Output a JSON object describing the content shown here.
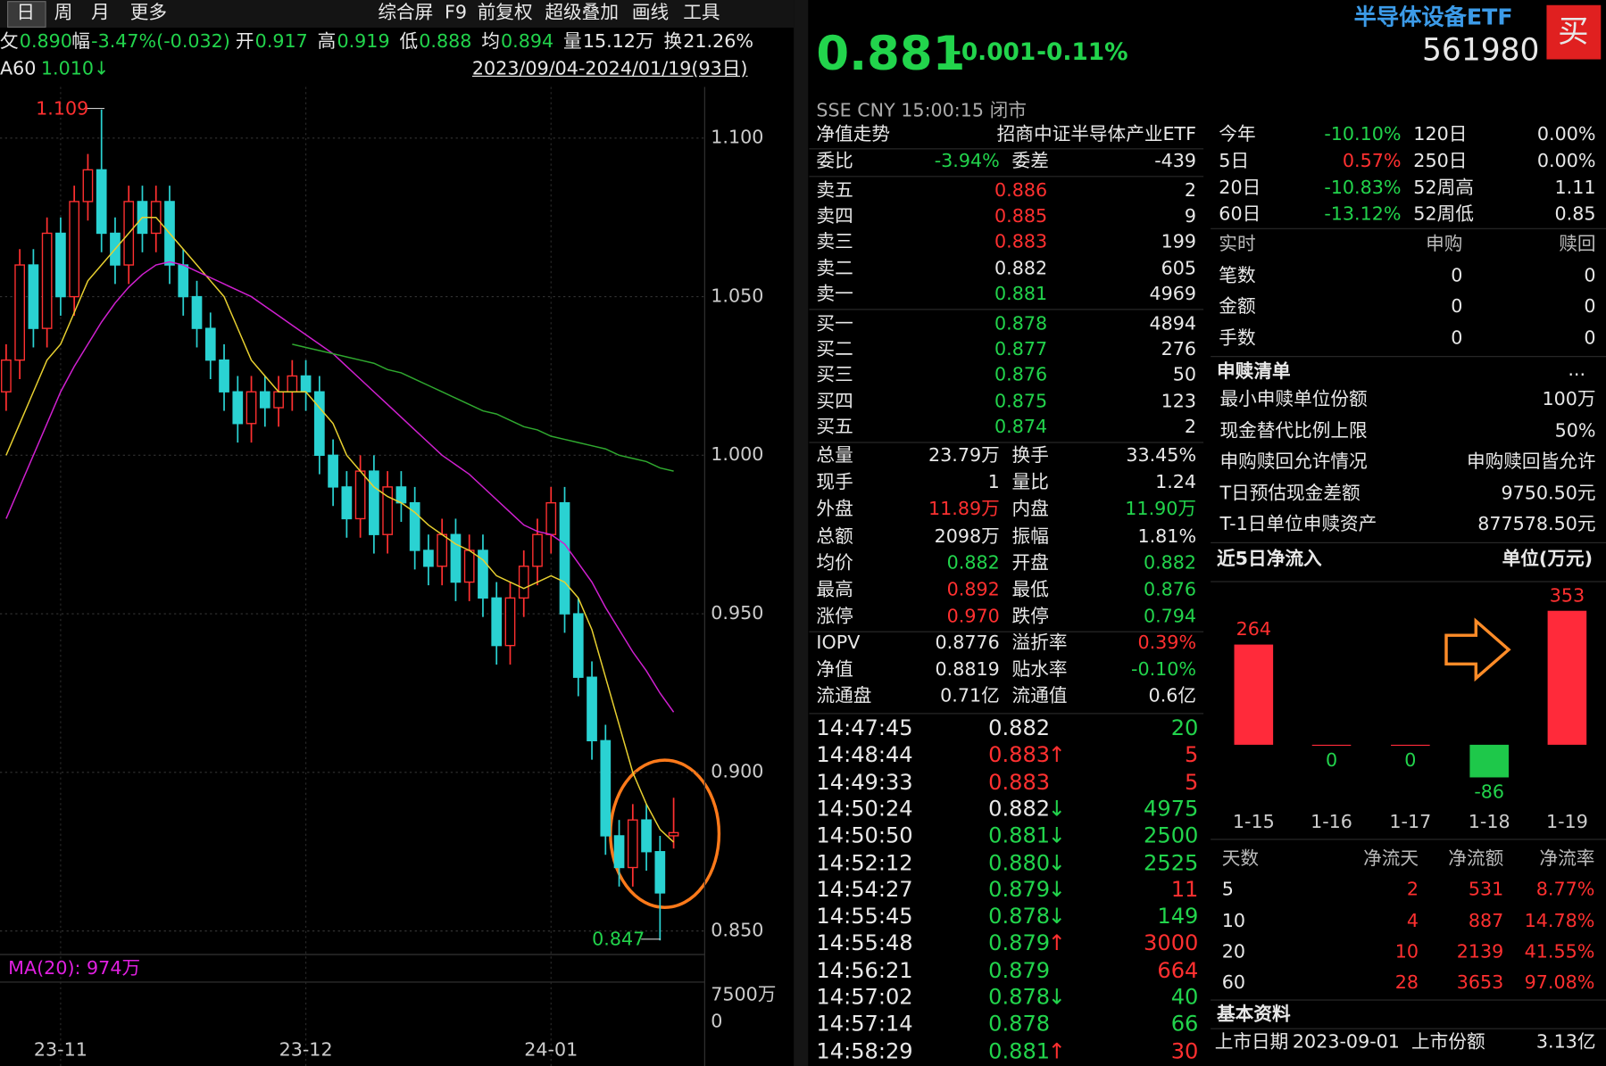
{
  "toolbar": {
    "tabs": [
      "日",
      "周",
      "月",
      "更多"
    ],
    "tools": [
      "综合屏",
      "F9",
      "前复权",
      "超级叠加",
      "画线",
      "工具"
    ]
  },
  "quote_line": {
    "items": [
      [
        "攵",
        "0.890"
      ],
      [
        "幅",
        "-3.47%(-0.032)"
      ],
      [
        "开",
        "0.917"
      ],
      [
        "高",
        "0.919"
      ],
      [
        "低",
        "0.888"
      ],
      [
        "均",
        "0.894"
      ],
      [
        "量",
        "15.12万"
      ],
      [
        "换",
        "21.26%"
      ]
    ],
    "colors": [
      "g",
      "g",
      "g",
      "g",
      "g",
      "g",
      "w",
      "w"
    ]
  },
  "ma_label": {
    "name": "A60",
    "value": "1.010↓"
  },
  "range": "2023/09/04-2024/01/19(93日)",
  "chart_data": {
    "type": "candlestick",
    "candles": [
      [
        1.02,
        1.035,
        1.014,
        1.03
      ],
      [
        1.03,
        1.065,
        1.024,
        1.06
      ],
      [
        1.06,
        1.065,
        1.034,
        1.04
      ],
      [
        1.04,
        1.075,
        1.034,
        1.07
      ],
      [
        1.07,
        1.075,
        1.044,
        1.05
      ],
      [
        1.05,
        1.085,
        1.044,
        1.08
      ],
      [
        1.08,
        1.095,
        1.074,
        1.09
      ],
      [
        1.09,
        1.109,
        1.064,
        1.07
      ],
      [
        1.07,
        1.075,
        1.054,
        1.06
      ],
      [
        1.06,
        1.085,
        1.054,
        1.08
      ],
      [
        1.08,
        1.085,
        1.064,
        1.07
      ],
      [
        1.07,
        1.085,
        1.064,
        1.08
      ],
      [
        1.08,
        1.085,
        1.054,
        1.06
      ],
      [
        1.06,
        1.065,
        1.044,
        1.05
      ],
      [
        1.05,
        1.055,
        1.034,
        1.04
      ],
      [
        1.04,
        1.045,
        1.024,
        1.03
      ],
      [
        1.03,
        1.035,
        1.014,
        1.02
      ],
      [
        1.02,
        1.025,
        1.004,
        1.01
      ],
      [
        1.01,
        1.025,
        1.004,
        1.02
      ],
      [
        1.02,
        1.025,
        1.009,
        1.015
      ],
      [
        1.015,
        1.025,
        1.009,
        1.02
      ],
      [
        1.02,
        1.03,
        1.014,
        1.025
      ],
      [
        1.025,
        1.03,
        1.014,
        1.02
      ],
      [
        1.02,
        1.025,
        0.994,
        1.0
      ],
      [
        1.0,
        1.005,
        0.984,
        0.99
      ],
      [
        0.99,
        0.995,
        0.974,
        0.98
      ],
      [
        0.98,
        1.0,
        0.974,
        0.995
      ],
      [
        0.995,
        1.0,
        0.969,
        0.975
      ],
      [
        0.975,
        0.995,
        0.969,
        0.99
      ],
      [
        0.99,
        0.995,
        0.979,
        0.985
      ],
      [
        0.985,
        0.99,
        0.964,
        0.97
      ],
      [
        0.97,
        0.975,
        0.959,
        0.965
      ],
      [
        0.965,
        0.98,
        0.959,
        0.975
      ],
      [
        0.975,
        0.98,
        0.954,
        0.96
      ],
      [
        0.96,
        0.975,
        0.954,
        0.97
      ],
      [
        0.97,
        0.975,
        0.949,
        0.955
      ],
      [
        0.955,
        0.96,
        0.934,
        0.94
      ],
      [
        0.94,
        0.96,
        0.934,
        0.955
      ],
      [
        0.955,
        0.97,
        0.949,
        0.965
      ],
      [
        0.965,
        0.98,
        0.959,
        0.975
      ],
      [
        0.975,
        0.99,
        0.969,
        0.985
      ],
      [
        0.985,
        0.99,
        0.944,
        0.95
      ],
      [
        0.95,
        0.955,
        0.924,
        0.93
      ],
      [
        0.93,
        0.935,
        0.904,
        0.91
      ],
      [
        0.91,
        0.915,
        0.874,
        0.88
      ],
      [
        0.88,
        0.885,
        0.864,
        0.87
      ],
      [
        0.87,
        0.89,
        0.864,
        0.885
      ],
      [
        0.885,
        0.89,
        0.869,
        0.875
      ],
      [
        0.875,
        0.88,
        0.847,
        0.862
      ],
      [
        0.88,
        0.892,
        0.876,
        0.881
      ]
    ],
    "categories": [
      null,
      null,
      null,
      null,
      "23-11",
      null,
      null,
      null,
      null,
      null,
      null,
      null,
      null,
      null,
      null,
      null,
      null,
      null,
      null,
      null,
      null,
      null,
      "23-12",
      null,
      null,
      null,
      null,
      null,
      null,
      null,
      null,
      null,
      null,
      null,
      null,
      null,
      null,
      null,
      null,
      null,
      "24-01",
      null,
      null,
      null,
      null,
      null,
      null,
      null,
      null,
      null
    ],
    "ma": [
      {
        "color": "#e8d030",
        "values": [
          1.0,
          1.01,
          1.02,
          1.03,
          1.035,
          1.045,
          1.055,
          1.06,
          1.065,
          1.07,
          1.075,
          1.075,
          1.07,
          1.065,
          1.06,
          1.055,
          1.05,
          1.04,
          1.03,
          1.025,
          1.02,
          1.02,
          1.02,
          1.015,
          1.01,
          1.0,
          0.995,
          0.99,
          0.987,
          0.985,
          0.982,
          0.978,
          0.975,
          0.972,
          0.97,
          0.967,
          0.962,
          0.96,
          0.958,
          0.96,
          0.962,
          0.96,
          0.955,
          0.945,
          0.93,
          0.915,
          0.9,
          0.89,
          0.882,
          0.878
        ]
      },
      {
        "color": "#d020d0",
        "values": [
          0.98,
          0.99,
          1.0,
          1.01,
          1.02,
          1.028,
          1.035,
          1.042,
          1.048,
          1.053,
          1.057,
          1.06,
          1.061,
          1.06,
          1.058,
          1.056,
          1.054,
          1.052,
          1.05,
          1.047,
          1.044,
          1.041,
          1.038,
          1.035,
          1.032,
          1.028,
          1.024,
          1.02,
          1.016,
          1.012,
          1.008,
          1.004,
          1.0,
          0.997,
          0.994,
          0.99,
          0.986,
          0.982,
          0.978,
          0.976,
          0.975,
          0.972,
          0.966,
          0.96,
          0.952,
          0.945,
          0.938,
          0.932,
          0.925,
          0.919
        ]
      },
      {
        "color": "#2fa82f",
        "values": [
          null,
          null,
          null,
          null,
          null,
          null,
          null,
          null,
          null,
          null,
          null,
          null,
          null,
          null,
          null,
          null,
          null,
          null,
          null,
          null,
          null,
          1.035,
          1.034,
          1.033,
          1.032,
          1.031,
          1.03,
          1.029,
          1.027,
          1.026,
          1.024,
          1.022,
          1.02,
          1.018,
          1.016,
          1.014,
          1.013,
          1.011,
          1.009,
          1.008,
          1.006,
          1.005,
          1.004,
          1.003,
          1.002,
          1.0,
          0.999,
          0.998,
          0.996,
          0.995
        ]
      }
    ],
    "up_color": "#ff3030",
    "down_color": "#2ad2d2",
    "ylim": [
      0.8375,
      1.1277
    ],
    "yticks": [
      {
        "value": 1.1,
        "label": "1.100"
      },
      {
        "value": 1.05,
        "label": "1.050"
      },
      {
        "value": 1.0,
        "label": "1.000"
      },
      {
        "value": 0.95,
        "label": "0.950"
      },
      {
        "value": 0.9,
        "label": "0.900"
      },
      {
        "value": 0.85,
        "label": "0.850"
      }
    ],
    "annotations": [
      "1.109",
      "0.847"
    ],
    "grid": true
  },
  "volume": {
    "label": "MA(20): 974万",
    "ticks": [
      "7500万",
      "0"
    ]
  },
  "header": {
    "title": "半导体设备ETF",
    "code": "561980",
    "buy": "买",
    "price": "0.881",
    "change": "-0.001",
    "pct": "-0.11%",
    "market": "SSE  CNY  15:00:15  闭市"
  },
  "nav": [
    "净值走势",
    "招商中证半导体产业ETF"
  ],
  "weibi": {
    "rows": [
      [
        "委比",
        "-3.94%",
        "委差",
        "-439"
      ]
    ],
    "colors": [
      "wgww"
    ]
  },
  "sell": {
    "rows": [
      [
        "卖五",
        "0.886",
        "2"
      ],
      [
        "卖四",
        "0.885",
        "9"
      ],
      [
        "卖三",
        "0.883",
        "199"
      ],
      [
        "卖二",
        "0.882",
        "605"
      ],
      [
        "卖一",
        "0.881",
        "4969"
      ]
    ],
    "colors": [
      "wrw",
      "wrw",
      "wrw",
      "www",
      "wgw"
    ]
  },
  "buy": {
    "rows": [
      [
        "买一",
        "0.878",
        "4894"
      ],
      [
        "买二",
        "0.877",
        "276"
      ],
      [
        "买三",
        "0.876",
        "50"
      ],
      [
        "买四",
        "0.875",
        "123"
      ],
      [
        "买五",
        "0.874",
        "2"
      ]
    ],
    "colors": [
      "wgw",
      "wgw",
      "wgw",
      "wgw",
      "wgw"
    ]
  },
  "stats": {
    "rows": [
      [
        "总量",
        "23.79万",
        "换手",
        "33.45%"
      ],
      [
        "现手",
        "1",
        "量比",
        "1.24"
      ],
      [
        "外盘",
        "11.89万",
        "内盘",
        "11.90万"
      ],
      [
        "总额",
        "2098万",
        "振幅",
        "1.81%"
      ],
      [
        "均价",
        "0.882",
        "开盘",
        "0.882"
      ],
      [
        "最高",
        "0.892",
        "最低",
        "0.876"
      ],
      [
        "涨停",
        "0.970",
        "跌停",
        "0.794"
      ]
    ],
    "colors": [
      "wwww",
      "wwww",
      "wrwg",
      "wwww",
      "wgwg",
      "wrwg",
      "wrwg"
    ]
  },
  "iopv": {
    "rows": [
      [
        "IOPV",
        "0.8776",
        "溢折率",
        "0.39%"
      ],
      [
        "净值",
        "0.8819",
        "贴水率",
        "-0.10%"
      ],
      [
        "流通盘",
        "0.71亿",
        "流通值",
        "0.6亿"
      ]
    ],
    "colors": [
      "wwwr",
      "wwwg",
      "wwww"
    ]
  },
  "trades": {
    "rows": [
      [
        "14:47:45",
        "0.882",
        null,
        "20"
      ],
      [
        "14:48:44",
        "0.883",
        "↑",
        "5"
      ],
      [
        "14:49:33",
        "0.883",
        null,
        "5"
      ],
      [
        "14:50:24",
        "0.882",
        "↓",
        "4975"
      ],
      [
        "14:50:50",
        "0.881",
        "↓",
        "2500"
      ],
      [
        "14:52:12",
        "0.880",
        "↓",
        "2525"
      ],
      [
        "14:54:27",
        "0.879",
        "↓",
        "11"
      ],
      [
        "14:55:45",
        "0.878",
        "↓",
        "149"
      ],
      [
        "14:55:48",
        "0.879",
        "↑",
        "3000"
      ],
      [
        "14:56:21",
        "0.879",
        null,
        "664"
      ],
      [
        "14:57:02",
        "0.878",
        "↓",
        "40"
      ],
      [
        "14:57:14",
        "0.878",
        null,
        "66"
      ],
      [
        "14:58:29",
        "0.881",
        "↑",
        "30"
      ]
    ],
    "colors": [
      "wwgg",
      "wrrr",
      "wrrr",
      "wwgg",
      "wggg",
      "wggg",
      "wggr",
      "wggg",
      "wgrr",
      "wggr",
      "wggg",
      "wggg",
      "wgrr"
    ]
  },
  "perf": {
    "rows": [
      [
        "今年",
        "-10.10%",
        "120日",
        "0.00%"
      ],
      [
        "5日",
        "0.57%",
        "250日",
        "0.00%"
      ],
      [
        "20日",
        "-10.83%",
        "52周高",
        "1.11"
      ],
      [
        "60日",
        "-13.12%",
        "52周低",
        "0.85"
      ]
    ],
    "colors": [
      "wgww",
      "wrww",
      "wgww",
      "wgww"
    ]
  },
  "realtime": {
    "rows": [
      [
        "实时",
        "申购",
        "赎回"
      ],
      [
        "笔数",
        "0",
        "0"
      ],
      [
        "金额",
        "0",
        "0"
      ],
      [
        "手数",
        "0",
        "0"
      ]
    ],
    "colors": [
      "ddd",
      "www",
      "www",
      "www"
    ]
  },
  "redeem": {
    "title": "申赎清单",
    "more": "...",
    "rows": [
      [
        "最小申赎单位份额",
        "100万"
      ],
      [
        "现金替代比例上限",
        "50%"
      ],
      [
        "申购赎回允许情况",
        "申购赎回皆允许"
      ],
      [
        "T日预估现金差额",
        "9750.50元"
      ],
      [
        "T-1日单位申赎资产",
        "877578.50元"
      ]
    ]
  },
  "flow_chart": {
    "type": "bar",
    "title": "近5日净流入",
    "unit": "单位(万元)",
    "categories": [
      "1-15",
      "1-16",
      "1-17",
      "1-18",
      "1-19"
    ],
    "values": [
      264,
      0,
      0,
      -86,
      353
    ],
    "up_color": "#ff2a3a",
    "down_color": "#1ec84a"
  },
  "flow_table": {
    "rows": [
      [
        "天数",
        "净流天",
        "净流额",
        "净流率"
      ],
      [
        "5",
        "2",
        "531",
        "8.77%"
      ],
      [
        "10",
        "4",
        "887",
        "14.78%"
      ],
      [
        "20",
        "10",
        "2139",
        "41.55%"
      ],
      [
        "60",
        "28",
        "3653",
        "97.08%"
      ]
    ],
    "colors": [
      "dddd",
      "wrrr",
      "wrrr",
      "wrrr",
      "wrrr"
    ]
  },
  "basic": {
    "title": "基本资料",
    "rows": [
      [
        "上市日期",
        "2023-09-01",
        "上市份额",
        "3.13亿"
      ]
    ]
  }
}
